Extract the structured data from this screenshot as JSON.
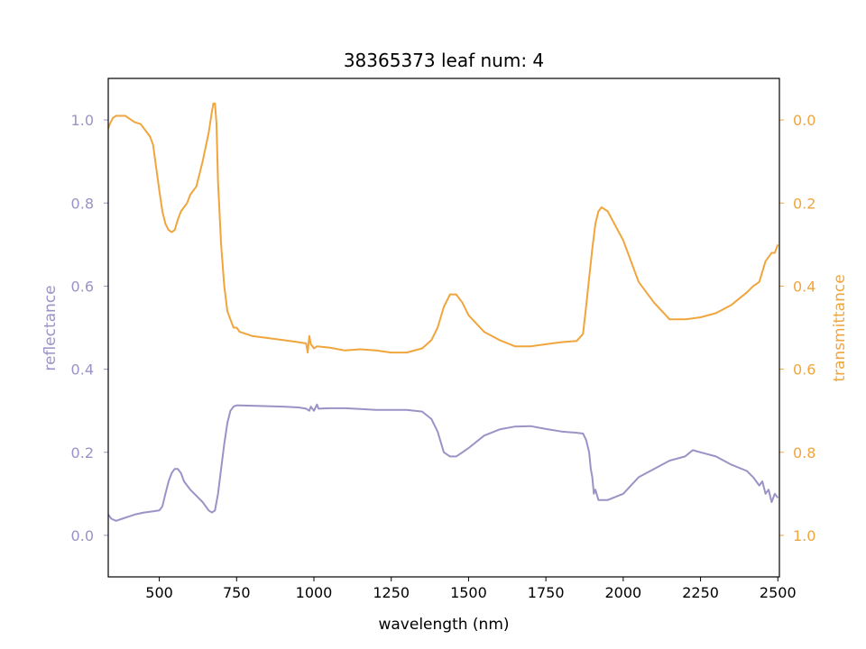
{
  "chart_data": {
    "type": "line",
    "title": "38365373 leaf num: 4",
    "xlabel": "wavelength (nm)",
    "ylabel_left": "reflectance",
    "ylabel_right": "transmittance",
    "xlim": [
      335,
      2505
    ],
    "ylim_left": [
      -0.1,
      1.1
    ],
    "ylim_right": [
      1.1,
      -0.1
    ],
    "right_axis_inverted": true,
    "grid": false,
    "legend": "none",
    "x_ticks": [
      {
        "value": 500,
        "label": "500"
      },
      {
        "value": 750,
        "label": "750"
      },
      {
        "value": 1000,
        "label": "1000"
      },
      {
        "value": 1250,
        "label": "1250"
      },
      {
        "value": 1500,
        "label": "1500"
      },
      {
        "value": 1750,
        "label": "1750"
      },
      {
        "value": 2000,
        "label": "2000"
      },
      {
        "value": 2250,
        "label": "2250"
      },
      {
        "value": 2500,
        "label": "2500"
      }
    ],
    "y_ticks_left": [
      {
        "value": 0.0,
        "label": "0.0"
      },
      {
        "value": 0.2,
        "label": "0.2"
      },
      {
        "value": 0.4,
        "label": "0.4"
      },
      {
        "value": 0.6,
        "label": "0.6"
      },
      {
        "value": 0.8,
        "label": "0.8"
      },
      {
        "value": 1.0,
        "label": "1.0"
      }
    ],
    "y_ticks_right": [
      {
        "value": 0.0,
        "label": "0.0"
      },
      {
        "value": 0.2,
        "label": "0.2"
      },
      {
        "value": 0.4,
        "label": "0.4"
      },
      {
        "value": 0.6,
        "label": "0.6"
      },
      {
        "value": 0.8,
        "label": "0.8"
      },
      {
        "value": 1.0,
        "label": "1.0"
      }
    ],
    "series": [
      {
        "axis": "left",
        "color": "#9a93c6",
        "x": [
          335,
          345,
          360,
          380,
          400,
          420,
          450,
          480,
          500,
          510,
          520,
          530,
          540,
          550,
          560,
          570,
          580,
          590,
          600,
          620,
          640,
          660,
          670,
          680,
          690,
          700,
          710,
          720,
          730,
          740,
          750,
          760,
          800,
          850,
          900,
          950,
          975,
          985,
          990,
          1000,
          1010,
          1015,
          1050,
          1100,
          1150,
          1200,
          1250,
          1300,
          1350,
          1380,
          1400,
          1420,
          1440,
          1460,
          1480,
          1500,
          1550,
          1600,
          1650,
          1700,
          1750,
          1800,
          1850,
          1870,
          1880,
          1890,
          1895,
          1900,
          1905,
          1910,
          1920,
          1950,
          2000,
          2050,
          2100,
          2150,
          2200,
          2225,
          2250,
          2300,
          2350,
          2400,
          2420,
          2440,
          2450,
          2460,
          2470,
          2480,
          2490,
          2500
        ],
        "values": [
          0.05,
          0.04,
          0.035,
          0.04,
          0.045,
          0.05,
          0.055,
          0.058,
          0.06,
          0.07,
          0.1,
          0.13,
          0.15,
          0.16,
          0.16,
          0.15,
          0.13,
          0.12,
          0.11,
          0.095,
          0.08,
          0.06,
          0.055,
          0.06,
          0.1,
          0.16,
          0.22,
          0.27,
          0.3,
          0.31,
          0.313,
          0.313,
          0.312,
          0.311,
          0.31,
          0.308,
          0.305,
          0.3,
          0.31,
          0.3,
          0.315,
          0.305,
          0.306,
          0.306,
          0.304,
          0.302,
          0.302,
          0.302,
          0.298,
          0.28,
          0.25,
          0.2,
          0.19,
          0.19,
          0.2,
          0.21,
          0.24,
          0.255,
          0.262,
          0.263,
          0.256,
          0.25,
          0.247,
          0.245,
          0.23,
          0.2,
          0.16,
          0.14,
          0.1,
          0.11,
          0.085,
          0.085,
          0.1,
          0.14,
          0.16,
          0.18,
          0.19,
          0.205,
          0.2,
          0.19,
          0.17,
          0.155,
          0.14,
          0.12,
          0.13,
          0.1,
          0.11,
          0.08,
          0.1,
          0.09
        ]
      },
      {
        "axis": "right",
        "color": "#f0a53d",
        "x": [
          335,
          340,
          350,
          360,
          370,
          380,
          390,
          400,
          420,
          440,
          450,
          460,
          470,
          480,
          500,
          510,
          520,
          530,
          540,
          550,
          560,
          570,
          580,
          590,
          600,
          620,
          640,
          660,
          670,
          675,
          680,
          685,
          690,
          700,
          710,
          720,
          730,
          740,
          750,
          760,
          780,
          800,
          850,
          900,
          950,
          975,
          980,
          985,
          990,
          1000,
          1010,
          1050,
          1100,
          1150,
          1200,
          1250,
          1300,
          1350,
          1380,
          1400,
          1420,
          1440,
          1460,
          1480,
          1500,
          1550,
          1600,
          1650,
          1700,
          1750,
          1800,
          1850,
          1870,
          1880,
          1890,
          1900,
          1910,
          1920,
          1930,
          1950,
          2000,
          2050,
          2100,
          2150,
          2200,
          2250,
          2300,
          2350,
          2400,
          2420,
          2440,
          2460,
          2470,
          2480,
          2490,
          2500
        ],
        "values": [
          0.02,
          0.01,
          -0.005,
          -0.01,
          -0.01,
          -0.01,
          -0.01,
          -0.005,
          0.005,
          0.01,
          0.02,
          0.03,
          0.04,
          0.06,
          0.17,
          0.22,
          0.25,
          0.265,
          0.27,
          0.265,
          0.24,
          0.22,
          0.21,
          0.2,
          0.18,
          0.16,
          0.1,
          0.03,
          -0.02,
          -0.04,
          -0.04,
          0.01,
          0.15,
          0.3,
          0.4,
          0.46,
          0.48,
          0.5,
          0.5,
          0.51,
          0.515,
          0.52,
          0.525,
          0.53,
          0.535,
          0.538,
          0.56,
          0.52,
          0.54,
          0.55,
          0.545,
          0.548,
          0.555,
          0.552,
          0.555,
          0.56,
          0.56,
          0.55,
          0.53,
          0.5,
          0.45,
          0.42,
          0.42,
          0.44,
          0.47,
          0.51,
          0.53,
          0.545,
          0.545,
          0.54,
          0.535,
          0.532,
          0.515,
          0.45,
          0.38,
          0.31,
          0.25,
          0.22,
          0.21,
          0.22,
          0.29,
          0.39,
          0.44,
          0.48,
          0.48,
          0.475,
          0.465,
          0.445,
          0.415,
          0.4,
          0.39,
          0.34,
          0.33,
          0.32,
          0.32,
          0.3
        ]
      }
    ]
  }
}
